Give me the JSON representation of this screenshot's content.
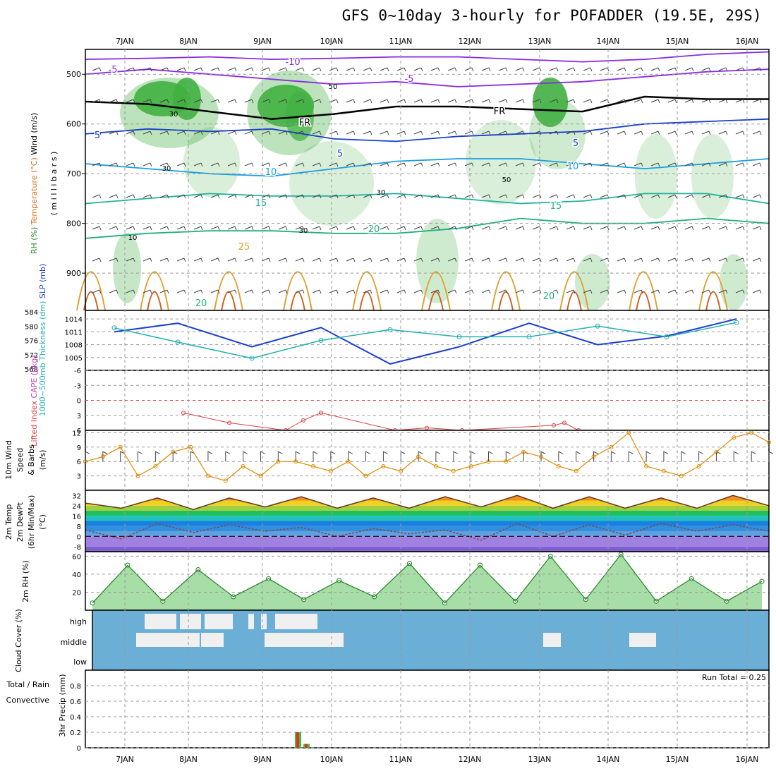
{
  "title": "GFS 0~10day 3-hourly for POFADDER (19.5E, 29S)",
  "colors": {
    "frame": "#000000",
    "grid": "#999999",
    "cloud_bg": "#6baed6",
    "cloud_fill": "#f0f0f0",
    "rh_fill": "#40b040",
    "precip_total": "#40c040",
    "precip_conv": "#e03020",
    "thickness": "#20b0b0",
    "slp": "#1a3fcc",
    "cape": "#c040c0",
    "li": "#e04040",
    "wind": "#e08a00",
    "temp_line": "#663322",
    "dewpt_line": "#884444"
  },
  "chart_data": [
    {
      "type": "heatmap",
      "panel": "upper-air",
      "ylabel_parts": [
        "RH (%)",
        "Temperature (°C)",
        "Wind (m/s)"
      ],
      "ylabel2": "( m i l l i b a r s )",
      "yticks": [
        "500",
        "600",
        "700",
        "800",
        "900"
      ],
      "ylim": [
        450,
        975
      ],
      "contour_labels": [
        "-10",
        "-5",
        "-5",
        "FR",
        "FR",
        "5",
        "5",
        "5",
        "10",
        "10",
        "15",
        "15",
        "20",
        "20",
        "20",
        "25"
      ],
      "rh_labels": [
        "30",
        "30",
        "50",
        "30",
        "30",
        "50",
        "10"
      ],
      "isotherms": [
        {
          "label": "-10",
          "p": [
            470,
            468,
            465,
            470,
            468,
            465,
            465,
            470,
            475,
            470,
            460,
            455
          ]
        },
        {
          "label": "-5",
          "p": [
            500,
            490,
            500,
            510,
            520,
            515,
            525,
            520,
            515,
            505,
            495,
            490
          ]
        },
        {
          "label": "FR",
          "p": [
            555,
            560,
            575,
            590,
            580,
            565,
            565,
            570,
            575,
            545,
            550,
            550
          ]
        },
        {
          "label": "5",
          "p": [
            620,
            610,
            615,
            610,
            630,
            635,
            625,
            620,
            615,
            600,
            595,
            590
          ]
        },
        {
          "label": "10",
          "p": [
            680,
            690,
            700,
            705,
            690,
            675,
            670,
            670,
            680,
            690,
            680,
            670
          ]
        },
        {
          "label": "15",
          "p": [
            760,
            750,
            740,
            745,
            745,
            740,
            750,
            760,
            755,
            740,
            740,
            760
          ]
        },
        {
          "label": "20",
          "p": [
            830,
            820,
            815,
            815,
            820,
            820,
            810,
            790,
            800,
            800,
            790,
            800
          ]
        }
      ]
    },
    {
      "type": "line",
      "panel": "thickness-slp",
      "ylabel_left": "1000~500mb Thickness (dm)",
      "ylabel_right": "SLP (mb)",
      "yticks_left": [
        "584",
        "580",
        "576",
        "572",
        "568"
      ],
      "yticks_right": [
        "1014",
        "1011",
        "1008",
        "1005"
      ],
      "ylim_left": [
        568,
        584
      ],
      "ylim_right": [
        1002,
        1016
      ],
      "x": [
        "7JAN",
        "8JAN",
        "9JAN",
        "10JAN",
        "11JAN",
        "12JAN",
        "13JAN",
        "14JAN",
        "15JAN",
        "16JAN"
      ],
      "series": [
        {
          "name": "SLP (mb)",
          "values": [
            1011,
            1013,
            1007.5,
            1012,
            1003.5,
            1007.5,
            1013,
            1008,
            1010,
            1014
          ]
        },
        {
          "name": "1000~500mb Thickness (dm)",
          "values": [
            579.5,
            575.5,
            571,
            576,
            579,
            577,
            577,
            580,
            577,
            581
          ]
        }
      ]
    },
    {
      "type": "line",
      "panel": "stability",
      "ylabel_left": "Lifted Index",
      "ylabel_right": "CAPE (J/kg)",
      "yticks": [
        "-6",
        "-3",
        "0",
        "3",
        "6"
      ],
      "ylim": [
        -6,
        6
      ],
      "series": [
        {
          "name": "Lifted Index",
          "values": [
            null,
            2.5,
            4.5,
            6,
            4,
            2.5,
            6,
            5.5,
            6,
            5,
            4.5,
            6
          ]
        }
      ]
    },
    {
      "type": "line",
      "panel": "wind",
      "ylabel": "10m Wind Speed & Barbs (m/s)",
      "ylabel_parts": [
        "10m Wind",
        "Speed",
        "& Barbs",
        "(m/s)"
      ],
      "yticks": [
        "12",
        "9",
        "6",
        "3"
      ],
      "ylim": [
        0,
        12.5
      ],
      "series": [
        {
          "name": "10m Wind Speed",
          "values": [
            6,
            7,
            9,
            3,
            5,
            8,
            9,
            3,
            2,
            5,
            3,
            6,
            6,
            5,
            4,
            6,
            3,
            5,
            4,
            7,
            5,
            4,
            5,
            6,
            6,
            8,
            7,
            5,
            4,
            7,
            9,
            12,
            5,
            4,
            3,
            5,
            8,
            11,
            12,
            10
          ]
        }
      ]
    },
    {
      "type": "area",
      "panel": "temperature",
      "ylabel": "2m Temp 2m DewPt (6hr Min/Max) (°C)",
      "ylabel_parts": [
        "2m Temp",
        "2m DewPt",
        "(6hr Min/Max)",
        "(°C)"
      ],
      "yticks": [
        "32",
        "24",
        "16",
        "8",
        "0",
        "-8"
      ],
      "ylim": [
        -12,
        36
      ],
      "series": [
        {
          "name": "2m Temp",
          "values": [
            26,
            22,
            30,
            21,
            30,
            23,
            31,
            22,
            30,
            22,
            31,
            23,
            32,
            22,
            31,
            22,
            30,
            22,
            32,
            24
          ]
        },
        {
          "name": "2m DewPt",
          "values": [
            5,
            -2,
            10,
            3,
            9,
            4,
            7,
            0,
            6,
            2,
            5,
            -3,
            10,
            0,
            9,
            1,
            10,
            4,
            9,
            4
          ]
        }
      ]
    },
    {
      "type": "area",
      "panel": "rh",
      "ylabel": "2m RH (%)",
      "yticks": [
        "60",
        "40",
        "20"
      ],
      "ylim": [
        0,
        65
      ],
      "series": [
        {
          "name": "2m RH",
          "values": [
            8,
            50,
            10,
            45,
            15,
            35,
            12,
            33,
            15,
            52,
            8,
            50,
            10,
            60,
            12,
            62,
            10,
            35,
            10,
            32
          ]
        }
      ]
    },
    {
      "type": "heatmap",
      "panel": "cloud",
      "ylabel": "Cloud Cover (%)",
      "levels": [
        "high",
        "middle",
        "low"
      ]
    },
    {
      "type": "bar",
      "panel": "precip",
      "ylabel": "3hr Precip (mm)",
      "ylabel_left_parts": [
        "Total / Rain",
        "Convective"
      ],
      "run_total": "Run Total = 0.25",
      "yticks": [
        "0.8",
        "0.6",
        "0.4",
        "0.2",
        "0"
      ],
      "ylim": [
        0,
        1.0
      ],
      "bars": [
        {
          "x": "9JAN 12Z",
          "total": 0.2,
          "convective": 0.2
        },
        {
          "x": "9JAN 15Z",
          "total": 0.05,
          "convective": 0.05
        }
      ]
    }
  ],
  "x_axis": {
    "top_labels": [
      "7JAN",
      "8JAN",
      "9JAN",
      "10JAN",
      "11JAN",
      "12JAN",
      "13JAN",
      "14JAN",
      "15JAN",
      "16JAN"
    ],
    "bottom_labels": [
      "7JAN",
      "8JAN",
      "9JAN",
      "10JAN",
      "11JAN",
      "12JAN",
      "13JAN",
      "14JAN",
      "15JAN",
      "16JAN"
    ]
  }
}
